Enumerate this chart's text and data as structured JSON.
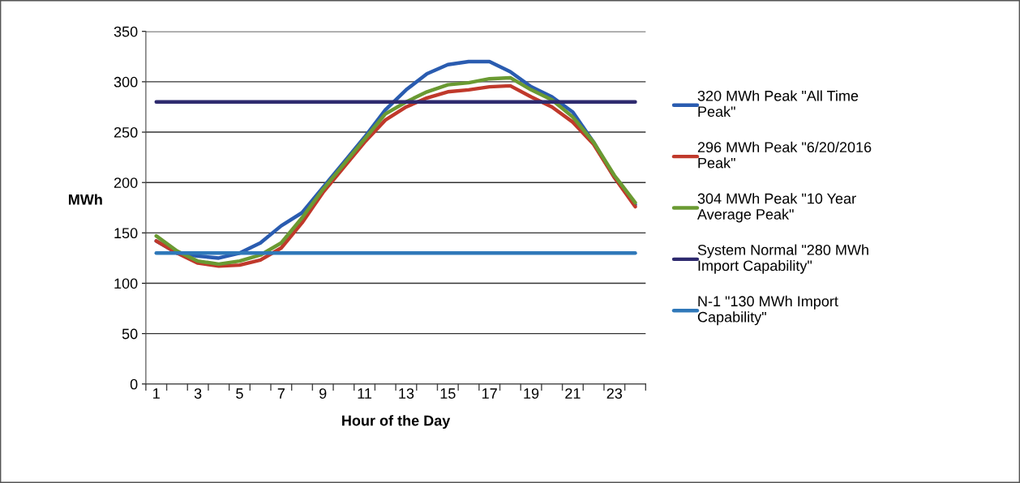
{
  "chart_data": {
    "type": "line",
    "xlabel": "Hour of the Day",
    "ylabel": "MWh",
    "categories": [
      "1",
      null,
      "3",
      null,
      "5",
      null,
      "7",
      null,
      "9",
      null,
      "11",
      null,
      "13",
      null,
      "15",
      null,
      "17",
      null,
      "19",
      null,
      "21",
      null,
      "23",
      null
    ],
    "ylim": [
      0,
      350
    ],
    "yticks": [
      0,
      50,
      100,
      150,
      200,
      250,
      300,
      350
    ],
    "grid": "y",
    "legend": "right",
    "marker": "none",
    "line_style": "solid",
    "series": [
      {
        "name": "320 MWh Peak \"All Time Peak\"",
        "color": "#2a5cb0",
        "values": [
          142,
          130,
          127,
          125,
          130,
          140,
          157,
          170,
          195,
          220,
          245,
          272,
          292,
          308,
          317,
          320,
          320,
          310,
          295,
          285,
          270,
          240,
          205,
          178
        ]
      },
      {
        "name": "296 MWh Peak \"6/20/2016 Peak\"",
        "color": "#c0392b",
        "values": [
          142,
          130,
          120,
          117,
          118,
          123,
          135,
          160,
          190,
          215,
          240,
          262,
          275,
          284,
          290,
          292,
          295,
          296,
          285,
          275,
          260,
          238,
          205,
          176
        ]
      },
      {
        "name": "304 MWh Peak \"10 Year Average Peak\"",
        "color": "#6a9a32",
        "values": [
          147,
          132,
          122,
          119,
          122,
          128,
          140,
          165,
          193,
          218,
          243,
          268,
          280,
          290,
          297,
          299,
          303,
          304,
          292,
          282,
          265,
          240,
          207,
          180
        ]
      },
      {
        "name": "System Normal \"280 MWh Import Capability\"",
        "color": "#2e2a6e",
        "values": [
          280,
          280,
          280,
          280,
          280,
          280,
          280,
          280,
          280,
          280,
          280,
          280,
          280,
          280,
          280,
          280,
          280,
          280,
          280,
          280,
          280,
          280,
          280,
          280
        ]
      },
      {
        "name": "N-1 \"130 MWh Import Capability\"",
        "color": "#2f78b9",
        "values": [
          130,
          130,
          130,
          130,
          130,
          130,
          130,
          130,
          130,
          130,
          130,
          130,
          130,
          130,
          130,
          130,
          130,
          130,
          130,
          130,
          130,
          130,
          130,
          130
        ]
      }
    ]
  }
}
